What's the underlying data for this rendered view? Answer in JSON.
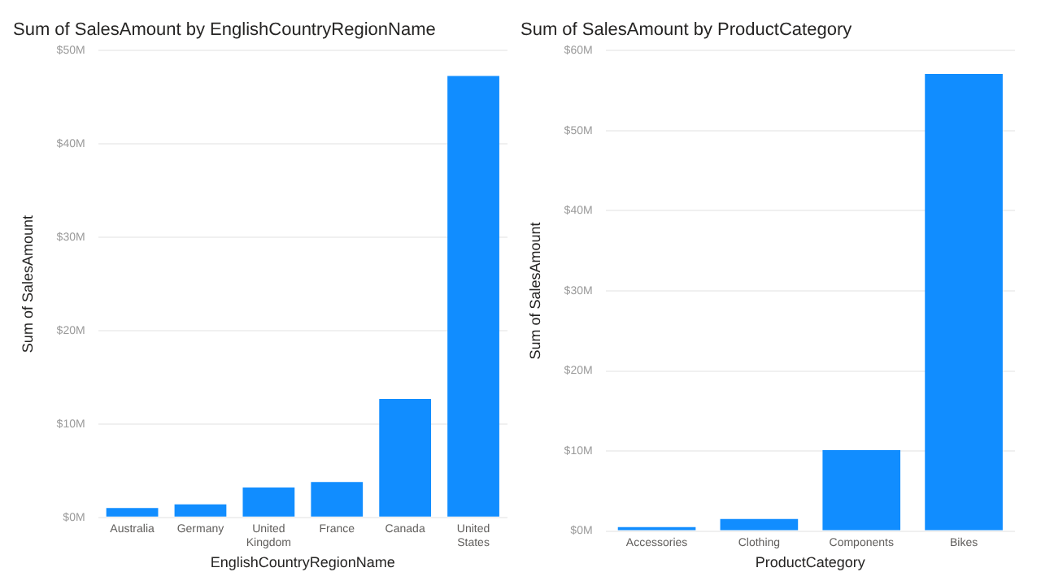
{
  "chart_data": [
    {
      "type": "bar",
      "title": "Sum of SalesAmount by EnglishCountryRegionName",
      "xlabel": "EnglishCountryRegionName",
      "ylabel": "Sum of SalesAmount",
      "categories": [
        "Australia",
        "Germany",
        "United Kingdom",
        "France",
        "Canada",
        "United States"
      ],
      "values": [
        1.0,
        1.4,
        3.2,
        3.8,
        12.7,
        47.3
      ],
      "color": "#118dff",
      "ylim": [
        0,
        50
      ],
      "yticks": [
        {
          "value": 0,
          "label": "$0M"
        },
        {
          "value": 10,
          "label": "$10M"
        },
        {
          "value": 20,
          "label": "$20M"
        },
        {
          "value": 30,
          "label": "$30M"
        },
        {
          "value": 40,
          "label": "$40M"
        },
        {
          "value": 50,
          "label": "$50M"
        }
      ],
      "grid": "y"
    },
    {
      "type": "bar",
      "title": "Sum of SalesAmount by ProductCategory",
      "xlabel": "ProductCategory",
      "ylabel": "Sum of SalesAmount",
      "categories": [
        "Accessories",
        "Clothing",
        "Components",
        "Bikes"
      ],
      "values": [
        0.5,
        1.5,
        10.1,
        57.1
      ],
      "color": "#118dff",
      "ylim": [
        0,
        60
      ],
      "yticks": [
        {
          "value": 0,
          "label": "$0M"
        },
        {
          "value": 10,
          "label": "$10M"
        },
        {
          "value": 20,
          "label": "$20M"
        },
        {
          "value": 30,
          "label": "$30M"
        },
        {
          "value": 40,
          "label": "$40M"
        },
        {
          "value": 50,
          "label": "$50M"
        },
        {
          "value": 60,
          "label": "$60M"
        }
      ],
      "grid": "y"
    }
  ]
}
